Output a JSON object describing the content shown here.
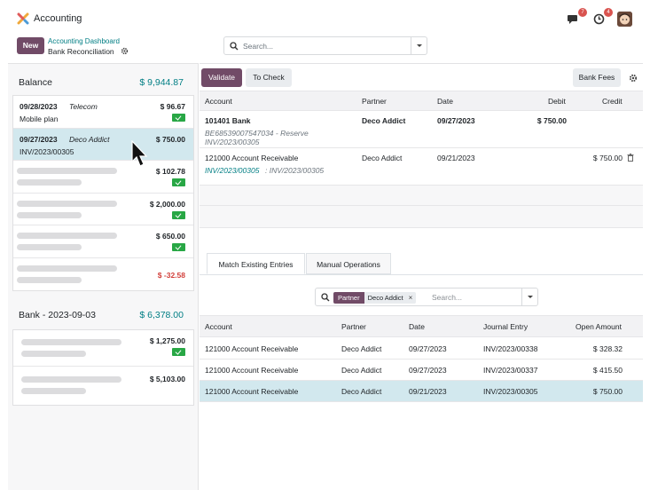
{
  "app": {
    "name": "Accounting"
  },
  "nav": {
    "messages_count": "7",
    "activities_count": "4"
  },
  "control": {
    "new_label": "New",
    "breadcrumb_parent": "Accounting Dashboard",
    "breadcrumb_current": "Bank Reconciliation",
    "search_placeholder": "Search..."
  },
  "left": {
    "groups": [
      {
        "title": "Balance",
        "amount": "$ 9,944.87",
        "lines": [
          {
            "date": "09/28/2023",
            "partner": "Telecom",
            "label": "Mobile plan",
            "amount": "$ 96.67",
            "checked": true
          },
          {
            "date": "09/27/2023",
            "partner": "Deco Addict",
            "label": "INV/2023/00305",
            "amount": "$ 750.00",
            "checked": false,
            "selected": true
          },
          {
            "amount": "$ 102.78",
            "checked": true
          },
          {
            "amount": "$ 2,000.00",
            "checked": true
          },
          {
            "amount": "$ 650.00",
            "checked": true
          },
          {
            "amount": "$ -32.58",
            "checked": false,
            "negative": true
          }
        ]
      },
      {
        "title": "Bank - 2023-09-03",
        "amount": "$ 6,378.00",
        "lines": [
          {
            "amount": "$ 1,275.00",
            "checked": true
          },
          {
            "amount": "$ 5,103.00",
            "checked": false
          }
        ]
      }
    ]
  },
  "right": {
    "buttons": {
      "validate": "Validate",
      "to_check": "To Check",
      "bank_fees": "Bank Fees"
    },
    "columns": {
      "account": "Account",
      "partner": "Partner",
      "date": "Date",
      "debit": "Debit",
      "credit": "Credit"
    },
    "entries": [
      {
        "account": "101401 Bank",
        "sub": "BE68539007547034 - Reserve",
        "sub2": "INV/2023/00305",
        "partner": "Deco Addict",
        "date": "09/27/2023",
        "debit": "$ 750.00",
        "credit": ""
      },
      {
        "account": "121000 Account Receivable",
        "sub_link": "INV/2023/00305",
        "sub_rest": ": INV/2023/00305",
        "partner": "Deco Addict",
        "date": "09/21/2023",
        "debit": "",
        "credit": "$ 750.00"
      }
    ],
    "tabs": {
      "match": "Match Existing Entries",
      "manual": "Manual Operations"
    },
    "search": {
      "facet_label": "Partner",
      "facet_value": "Deco Addict",
      "placeholder": "Search..."
    },
    "match_columns": {
      "account": "Account",
      "partner": "Partner",
      "date": "Date",
      "journal_entry": "Journal Entry",
      "open_amount": "Open Amount"
    },
    "match_rows": [
      {
        "account": "121000 Account Receivable",
        "partner": "Deco Addict",
        "date": "09/27/2023",
        "journal_entry": "INV/2023/00338",
        "open_amount": "$ 328.32"
      },
      {
        "account": "121000 Account Receivable",
        "partner": "Deco Addict",
        "date": "09/27/2023",
        "journal_entry": "INV/2023/00337",
        "open_amount": "$ 415.50"
      },
      {
        "account": "121000 Account Receivable",
        "partner": "Deco Addict",
        "date": "09/21/2023",
        "journal_entry": "INV/2023/00305",
        "open_amount": "$ 750.00",
        "highlighted": true
      }
    ]
  },
  "colors": {
    "primary": "#714b67",
    "teal": "#017e84",
    "success": "#28a745",
    "danger": "#d23f3a",
    "selected_row": "#d2e8ee"
  }
}
